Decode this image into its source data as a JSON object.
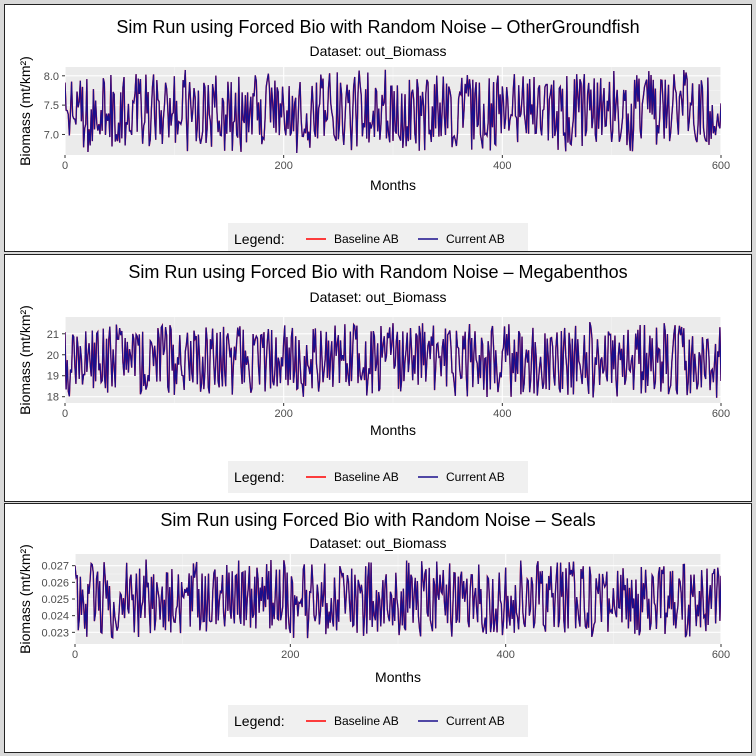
{
  "colors": {
    "baseline": "#ff0000",
    "current": "#1a0f8c",
    "panel_bg": "#ebebeb",
    "grid_major": "#ffffff"
  },
  "chart_data": [
    {
      "type": "line",
      "title": "Sim Run using Forced Bio with Random Noise – OtherGroundfish",
      "subtitle": "Dataset: out_Biomass",
      "xlabel": "Months",
      "ylabel": "Biomass (mt/km²)",
      "xlim": [
        0,
        600
      ],
      "ylim": [
        6.65,
        8.15
      ],
      "xticks": [
        0,
        200,
        400,
        600
      ],
      "xtick_labels": [
        "0",
        "200",
        "400",
        "600"
      ],
      "yticks": [
        7.0,
        7.5,
        8.0
      ],
      "ytick_labels": [
        "7.0",
        "7.5",
        "8.0"
      ],
      "grid": true,
      "legend_position": "bottom",
      "legend_title": "Legend:",
      "noise_seed": 11,
      "series": [
        {
          "name": "Baseline AB",
          "color": "#ff0000",
          "x_range": [
            0,
            600
          ],
          "mean": 7.4,
          "min": 6.68,
          "max": 8.12,
          "points": 600
        },
        {
          "name": "Current AB",
          "color": "#1a0f8c",
          "x_range": [
            0,
            600
          ],
          "mean": 7.4,
          "min": 6.68,
          "max": 8.12,
          "points": 600
        }
      ]
    },
    {
      "type": "line",
      "title": "Sim Run using Forced Bio with Random Noise – Megabenthos",
      "subtitle": "Dataset: out_Biomass",
      "xlabel": "Months",
      "ylabel": "Biomass (mt/km²)",
      "xlim": [
        0,
        600
      ],
      "ylim": [
        17.7,
        21.8
      ],
      "xticks": [
        0,
        200,
        400,
        600
      ],
      "xtick_labels": [
        "0",
        "200",
        "400",
        "600"
      ],
      "yticks": [
        18,
        19,
        20,
        21
      ],
      "ytick_labels": [
        "18",
        "19",
        "20",
        "21"
      ],
      "grid": true,
      "legend_position": "bottom",
      "legend_title": "Legend:",
      "noise_seed": 23,
      "series": [
        {
          "name": "Baseline AB",
          "color": "#ff0000",
          "x_range": [
            0,
            600
          ],
          "mean": 19.8,
          "min": 17.9,
          "max": 21.6,
          "points": 600
        },
        {
          "name": "Current AB",
          "color": "#1a0f8c",
          "x_range": [
            0,
            600
          ],
          "mean": 19.8,
          "min": 17.9,
          "max": 21.6,
          "points": 600
        }
      ]
    },
    {
      "type": "line",
      "title": "Sim Run using Forced Bio with Random Noise – Seals",
      "subtitle": "Dataset: out_Biomass",
      "xlabel": "Months",
      "ylabel": "Biomass (mt/km²)",
      "xlim": [
        0,
        600
      ],
      "ylim": [
        0.0223,
        0.0277
      ],
      "xticks": [
        0,
        200,
        400,
        600
      ],
      "xtick_labels": [
        "0",
        "200",
        "400",
        "600"
      ],
      "yticks": [
        0.023,
        0.024,
        0.025,
        0.026,
        0.027
      ],
      "ytick_labels": [
        "0.023",
        "0.024",
        "0.025",
        "0.026",
        "0.027"
      ],
      "grid": true,
      "legend_position": "bottom",
      "legend_title": "Legend:",
      "noise_seed": 37,
      "series": [
        {
          "name": "Baseline AB",
          "color": "#ff0000",
          "x_range": [
            0,
            600
          ],
          "mean": 0.025,
          "min": 0.0226,
          "max": 0.0274,
          "points": 600
        },
        {
          "name": "Current AB",
          "color": "#1a0f8c",
          "x_range": [
            0,
            600
          ],
          "mean": 0.025,
          "min": 0.0226,
          "max": 0.0274,
          "points": 600
        }
      ]
    }
  ]
}
